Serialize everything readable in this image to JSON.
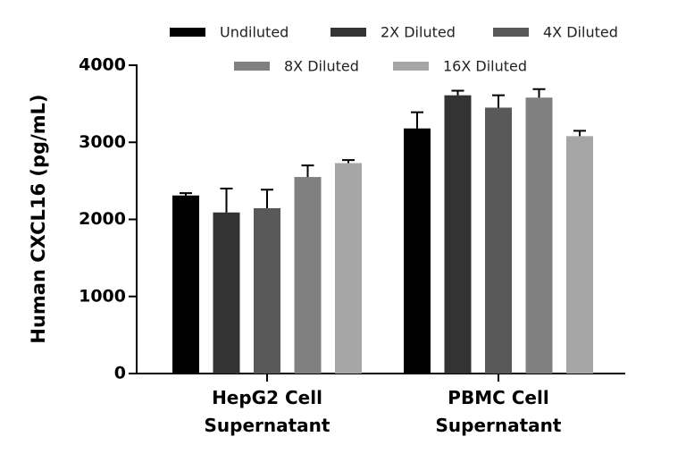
{
  "chart_data": {
    "type": "bar",
    "y_label": "Human CXCL16 (pg/mL)",
    "categories": [
      "HepG2 Cell Supernatant",
      "PBMC Cell Supernatant"
    ],
    "series": [
      {
        "name": "Undiluted",
        "color": "#000000",
        "values": [
          2310,
          3180
        ],
        "errors": [
          30,
          210
        ]
      },
      {
        "name": "2X Diluted",
        "color": "#333333",
        "values": [
          2090,
          3610
        ],
        "errors": [
          310,
          60
        ]
      },
      {
        "name": "4X Diluted",
        "color": "#595959",
        "values": [
          2145,
          3450
        ],
        "errors": [
          240,
          160
        ]
      },
      {
        "name": "8X Diluted",
        "color": "#808080",
        "values": [
          2550,
          3580
        ],
        "errors": [
          150,
          110
        ]
      },
      {
        "name": "16X Diluted",
        "color": "#a6a6a6",
        "values": [
          2730,
          3080
        ],
        "errors": [
          40,
          70
        ]
      }
    ],
    "ylim": [
      0,
      4000
    ],
    "yticks": [
      0,
      1000,
      2000,
      3000,
      4000
    ],
    "legend": "top"
  }
}
